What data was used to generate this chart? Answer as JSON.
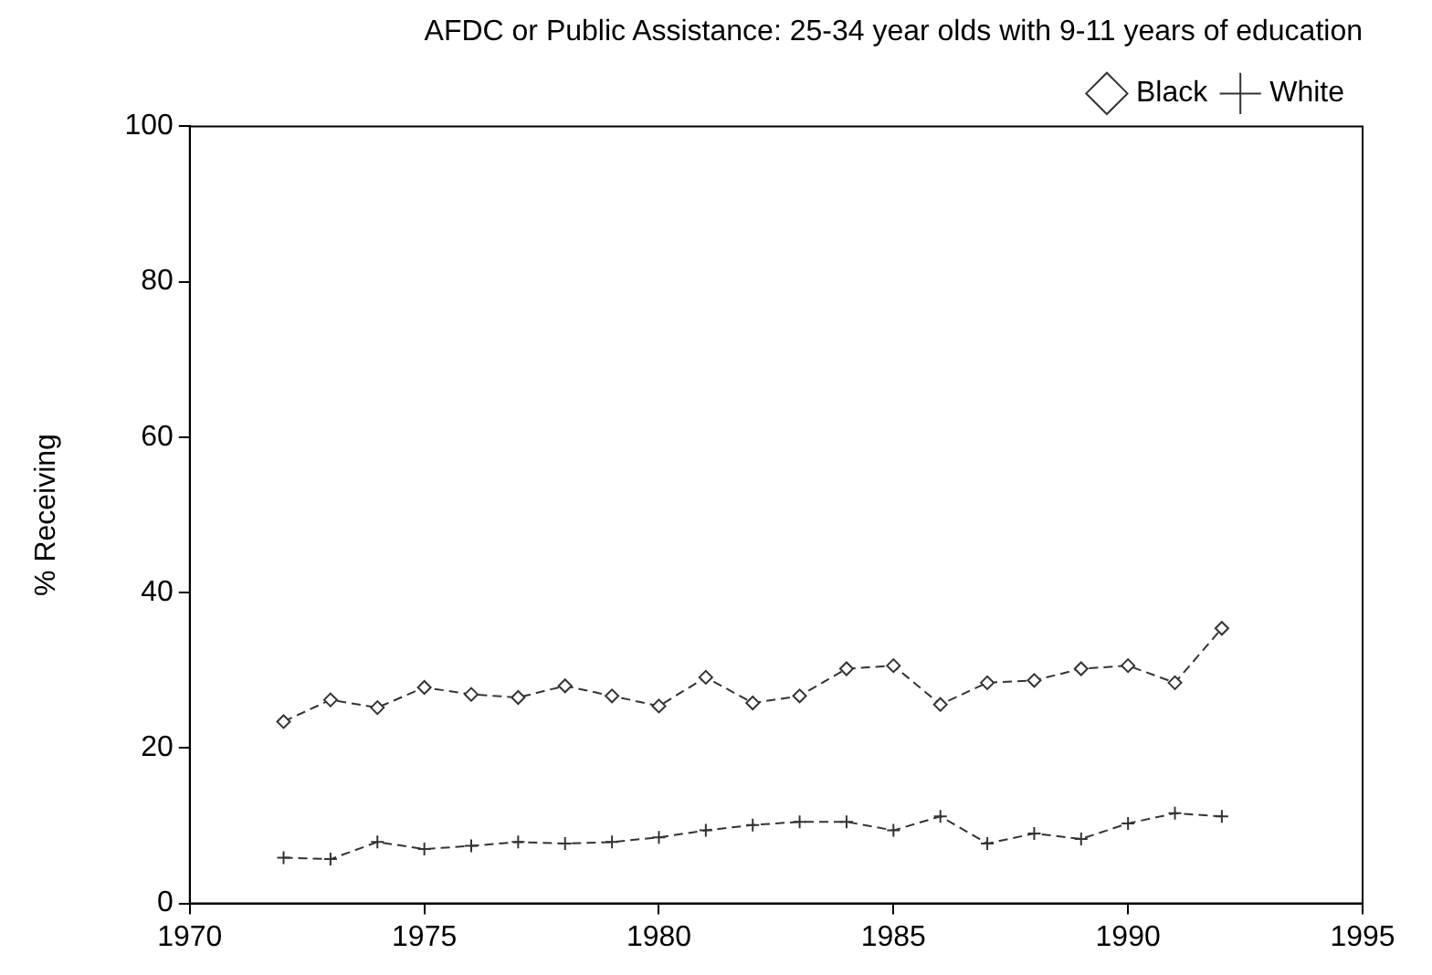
{
  "chart_data": {
    "type": "line",
    "title": "AFDC or Public Assistance: 25-34 year olds with 9-11 years of education",
    "ylabel": "% Receiving",
    "x": [
      1972,
      1973,
      1974,
      1975,
      1976,
      1977,
      1978,
      1979,
      1980,
      1981,
      1982,
      1983,
      1984,
      1985,
      1986,
      1987,
      1988,
      1989,
      1990,
      1991,
      1992
    ],
    "series": [
      {
        "name": "Black",
        "color": "#333333",
        "marker": "diamond",
        "values": [
          23.4,
          26.2,
          25.2,
          27.8,
          26.9,
          26.5,
          28,
          26.7,
          25.4,
          29.1,
          25.8,
          26.7,
          30.2,
          30.6,
          25.6,
          28.4,
          28.7,
          30.2,
          30.6,
          28.4,
          35.4
        ]
      },
      {
        "name": "White",
        "color": "#333333",
        "marker": "cross",
        "values": [
          5.9,
          5.7,
          7.9,
          7,
          7.4,
          7.9,
          7.7,
          7.9,
          8.5,
          9.4,
          10.1,
          10.5,
          10.5,
          9.4,
          11.2,
          7.7,
          9,
          8.3,
          10.3,
          11.6,
          11.2
        ]
      }
    ],
    "xlim": [
      1970,
      1995
    ],
    "xticks": [
      1970,
      1975,
      1980,
      1985,
      1990,
      1995
    ],
    "ylim": [
      0,
      100
    ],
    "yticks": [
      0,
      20,
      40,
      60,
      80,
      100
    ],
    "grid": false,
    "legend": "top right",
    "line_style": "dashed"
  }
}
